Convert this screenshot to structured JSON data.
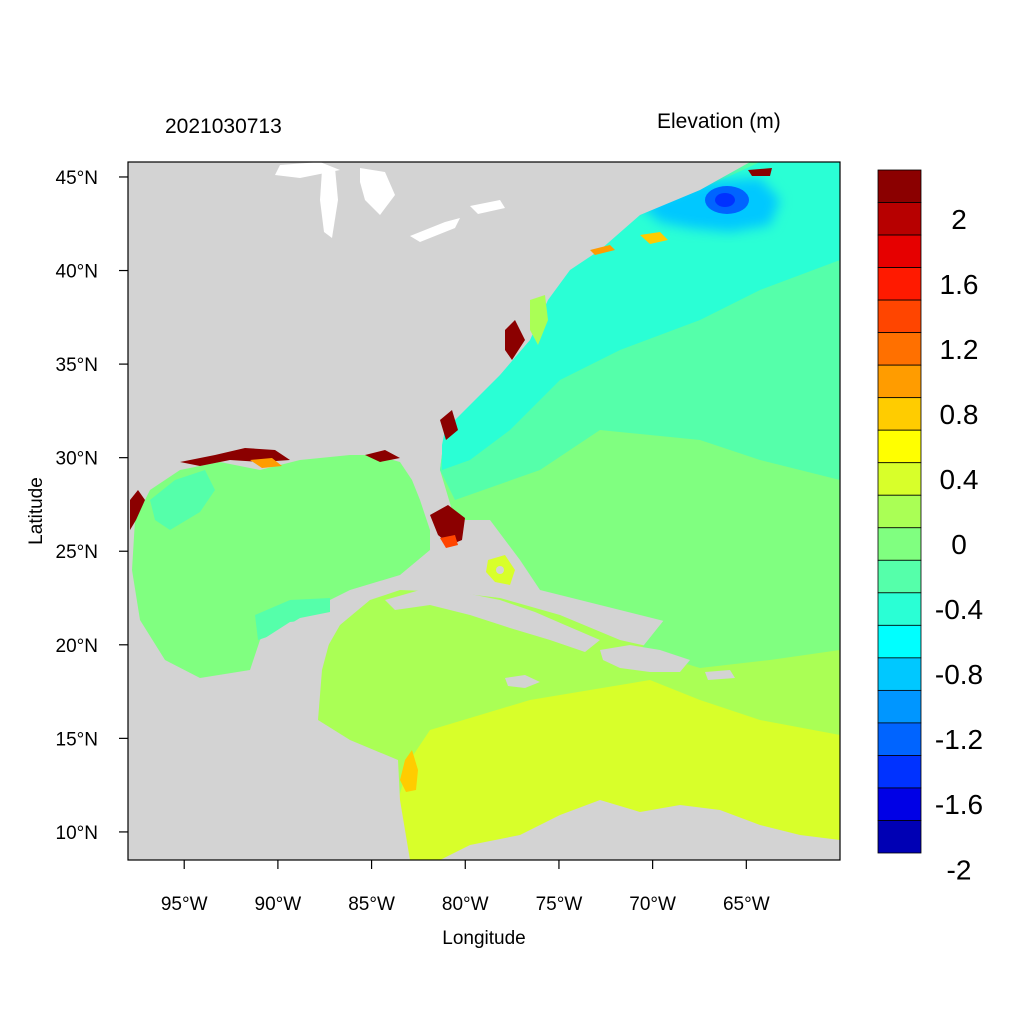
{
  "timestamp": "2021030713",
  "colorbar_title": "Elevation (m)",
  "axes": {
    "xlabel": "Longitude",
    "ylabel": "Latitude",
    "x_ticks": [
      "95°W",
      "90°W",
      "85°W",
      "80°W",
      "75°W",
      "70°W",
      "65°W"
    ],
    "x_tick_values": [
      -95,
      -90,
      -85,
      -80,
      -75,
      -70,
      -65
    ],
    "y_ticks": [
      "45°N",
      "40°N",
      "35°N",
      "30°N",
      "25°N",
      "20°N",
      "15°N",
      "10°N"
    ],
    "y_tick_values": [
      45,
      40,
      35,
      30,
      25,
      20,
      15,
      10
    ],
    "xlim": [
      -98,
      -60
    ],
    "ylim": [
      8.5,
      45.8
    ]
  },
  "colorbar": {
    "labels": [
      "2",
      "1.6",
      "1.2",
      "0.8",
      "0.4",
      "0",
      "-0.4",
      "-0.8",
      "-1.2",
      "-1.6",
      "-2"
    ],
    "colors_top_to_bottom": [
      "#8b0000",
      "#b70000",
      "#e60000",
      "#ff1a00",
      "#ff4500",
      "#ff7000",
      "#ff9c00",
      "#ffcc00",
      "#ffff00",
      "#d8ff2a",
      "#aaff55",
      "#80ff80",
      "#55ffaa",
      "#2affd5",
      "#00ffff",
      "#00c8ff",
      "#0096ff",
      "#0064ff",
      "#0032ff",
      "#0000e6",
      "#0000b4"
    ]
  },
  "colors": {
    "land": "#d3d3d3",
    "ocean_base": "#80ff80"
  }
}
